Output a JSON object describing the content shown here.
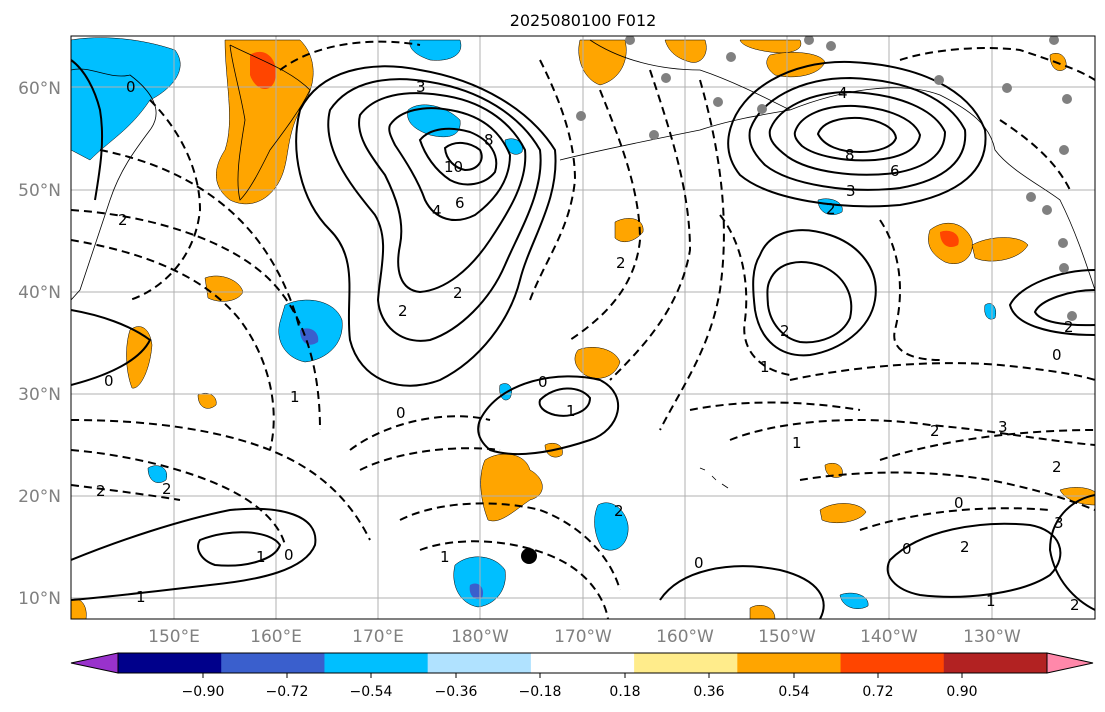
{
  "title": "2025080100 F012",
  "lat_labels": [
    "60°N",
    "50°N",
    "40°N",
    "30°N",
    "20°N",
    "10°N"
  ],
  "lon_labels": [
    "150°E",
    "160°E",
    "170°E",
    "180°W",
    "170°W",
    "160°W",
    "150°W",
    "140°W",
    "130°W"
  ],
  "colorbar": {
    "colors": [
      "#9932cc",
      "#00008b",
      "#3a5fcd",
      "#00bfff",
      "#b0e2ff",
      "#ffffff",
      "#ffec8b",
      "#ffa500",
      "#ff4500",
      "#b22222",
      "#ff88aa"
    ],
    "tick_labels": [
      "−0.90",
      "−0.72",
      "−0.54",
      "−0.36",
      "−0.18",
      "0.18",
      "0.36",
      "0.54",
      "0.72",
      "0.90"
    ]
  },
  "contour_labels": [
    "0",
    "2",
    "3",
    "6",
    "8",
    "10",
    "4",
    "2",
    "1",
    "0",
    "1",
    "2",
    "4",
    "8",
    "6",
    "3",
    "2",
    "2",
    "1",
    "0",
    "3",
    "2",
    "2",
    "0",
    "1",
    "2",
    "1",
    "0",
    "2",
    "0",
    "2",
    "3",
    "2",
    "1",
    "0",
    "1",
    "2",
    "2",
    "0",
    "1",
    "2",
    "0"
  ],
  "colors": {
    "frame": "#000000",
    "grid": "#b0b0b0",
    "coast": "#000000",
    "axis_label": "#808080"
  }
}
